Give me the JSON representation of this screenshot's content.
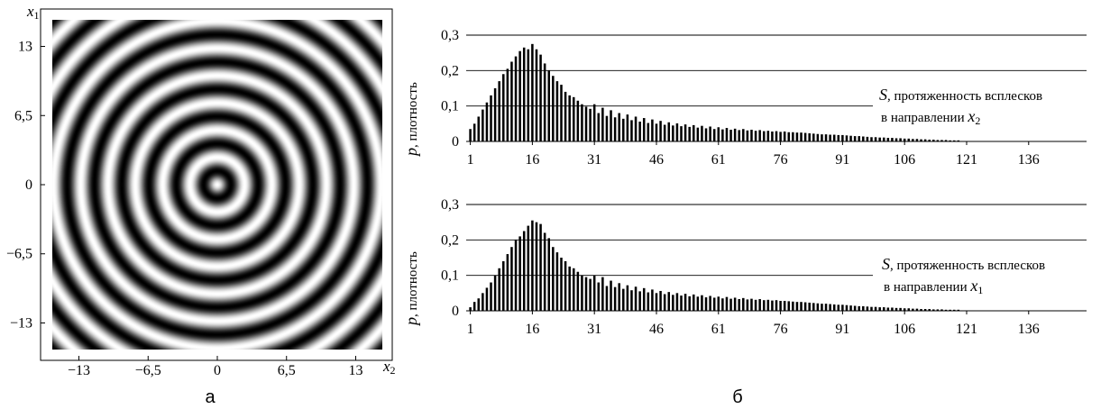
{
  "captions": {
    "a": "а",
    "b": "б"
  },
  "chart_data": [
    {
      "type": "heatmap",
      "xlabel": "x2",
      "ylabel": "x1",
      "xlim": [
        -15.5,
        15.5
      ],
      "ylim": [
        -15.5,
        15.5
      ],
      "x_ticks": [
        "−13",
        "−6,5",
        "0",
        "6,5",
        "13"
      ],
      "x_tick_values": [
        -13,
        -6.5,
        0,
        6.5,
        13
      ],
      "y_ticks": [
        "13",
        "6,5",
        "0",
        "−6,5",
        "−13"
      ],
      "y_tick_values": [
        13,
        6.5,
        0,
        -6.5,
        -13
      ],
      "pattern": "concentric rings, grayscale intensity = cos(k·r)",
      "ring_wavenumber": 2.45
    },
    {
      "type": "bar",
      "ylabel_var": "p",
      "ylabel_text": ", плотность",
      "xlabel_var": "S",
      "xlabel_text": ",  протяженность всплесков",
      "xlabel_line2": "в направлении ",
      "xlabel_axis": "x",
      "xlabel_axis_sub": "2",
      "ylim": [
        0,
        0.3
      ],
      "y_ticks": [
        "0",
        "0,1",
        "0,2",
        "0,3"
      ],
      "y_tick_values": [
        0,
        0.1,
        0.2,
        0.3
      ],
      "xlim": [
        0,
        150
      ],
      "x_ticks": [
        "1",
        "16",
        "31",
        "46",
        "61",
        "76",
        "91",
        "106",
        "121",
        "136"
      ],
      "x_tick_values": [
        1,
        16,
        31,
        46,
        61,
        76,
        91,
        106,
        121,
        136
      ],
      "grid": true,
      "x": [
        1,
        2,
        3,
        4,
        5,
        6,
        7,
        8,
        9,
        10,
        11,
        12,
        13,
        14,
        15,
        16,
        17,
        18,
        19,
        20,
        21,
        22,
        23,
        24,
        25,
        26,
        27,
        28,
        29,
        30,
        31,
        32,
        33,
        34,
        35,
        36,
        37,
        38,
        39,
        40,
        41,
        42,
        43,
        44,
        45,
        46,
        47,
        48,
        49,
        50,
        51,
        52,
        53,
        54,
        55,
        56,
        57,
        58,
        59,
        60,
        61,
        62,
        63,
        64,
        65,
        66,
        67,
        68,
        69,
        70,
        71,
        72,
        73,
        74,
        75,
        76,
        77,
        78,
        79,
        80,
        81,
        82,
        83,
        84,
        85,
        86,
        87,
        88,
        89,
        90,
        91,
        92,
        93,
        94,
        95,
        96,
        97,
        98,
        99,
        100,
        101,
        102,
        103,
        104,
        105,
        106,
        107,
        108,
        109,
        110,
        111,
        112,
        113,
        114,
        115,
        116,
        117,
        118,
        119
      ],
      "values": [
        0.035,
        0.05,
        0.07,
        0.09,
        0.11,
        0.13,
        0.15,
        0.17,
        0.19,
        0.205,
        0.225,
        0.24,
        0.255,
        0.265,
        0.26,
        0.275,
        0.26,
        0.245,
        0.22,
        0.2,
        0.185,
        0.17,
        0.16,
        0.14,
        0.13,
        0.125,
        0.115,
        0.105,
        0.098,
        0.092,
        0.105,
        0.08,
        0.095,
        0.072,
        0.088,
        0.068,
        0.08,
        0.064,
        0.076,
        0.06,
        0.07,
        0.056,
        0.066,
        0.052,
        0.062,
        0.05,
        0.058,
        0.047,
        0.054,
        0.045,
        0.051,
        0.043,
        0.048,
        0.041,
        0.046,
        0.039,
        0.044,
        0.037,
        0.042,
        0.035,
        0.04,
        0.034,
        0.038,
        0.033,
        0.036,
        0.032,
        0.035,
        0.031,
        0.033,
        0.03,
        0.032,
        0.029,
        0.03,
        0.028,
        0.029,
        0.027,
        0.028,
        0.026,
        0.026,
        0.025,
        0.025,
        0.024,
        0.023,
        0.022,
        0.021,
        0.02,
        0.02,
        0.019,
        0.019,
        0.018,
        0.018,
        0.017,
        0.016,
        0.015,
        0.015,
        0.014,
        0.013,
        0.012,
        0.012,
        0.011,
        0.011,
        0.01,
        0.01,
        0.009,
        0.009,
        0.008,
        0.008,
        0.007,
        0.007,
        0.006,
        0.006,
        0.005,
        0.005,
        0.004,
        0.004,
        0.004,
        0.003,
        0.003,
        0.003
      ]
    },
    {
      "type": "bar",
      "ylabel_var": "p",
      "ylabel_text": ", плотность",
      "xlabel_var": "S",
      "xlabel_text": ",  протяженность всплесков",
      "xlabel_line2": "в направлении ",
      "xlabel_axis": "x",
      "xlabel_axis_sub": "1",
      "ylim": [
        0,
        0.3
      ],
      "y_ticks": [
        "0",
        "0,1",
        "0,2",
        "0,3"
      ],
      "y_tick_values": [
        0,
        0.1,
        0.2,
        0.3
      ],
      "xlim": [
        0,
        150
      ],
      "x_ticks": [
        "1",
        "16",
        "31",
        "46",
        "61",
        "76",
        "91",
        "106",
        "121",
        "136"
      ],
      "x_tick_values": [
        1,
        16,
        31,
        46,
        61,
        76,
        91,
        106,
        121,
        136
      ],
      "grid": true,
      "x": [
        1,
        2,
        3,
        4,
        5,
        6,
        7,
        8,
        9,
        10,
        11,
        12,
        13,
        14,
        15,
        16,
        17,
        18,
        19,
        20,
        21,
        22,
        23,
        24,
        25,
        26,
        27,
        28,
        29,
        30,
        31,
        32,
        33,
        34,
        35,
        36,
        37,
        38,
        39,
        40,
        41,
        42,
        43,
        44,
        45,
        46,
        47,
        48,
        49,
        50,
        51,
        52,
        53,
        54,
        55,
        56,
        57,
        58,
        59,
        60,
        61,
        62,
        63,
        64,
        65,
        66,
        67,
        68,
        69,
        70,
        71,
        72,
        73,
        74,
        75,
        76,
        77,
        78,
        79,
        80,
        81,
        82,
        83,
        84,
        85,
        86,
        87,
        88,
        89,
        90,
        91,
        92,
        93,
        94,
        95,
        96,
        97,
        98,
        99,
        100,
        101,
        102,
        103,
        104,
        105,
        106,
        107,
        108,
        109,
        110,
        111,
        112,
        113,
        114,
        115,
        116,
        117,
        118,
        119
      ],
      "values": [
        0.01,
        0.025,
        0.035,
        0.05,
        0.065,
        0.08,
        0.1,
        0.12,
        0.14,
        0.16,
        0.18,
        0.2,
        0.21,
        0.225,
        0.24,
        0.255,
        0.25,
        0.245,
        0.22,
        0.205,
        0.18,
        0.165,
        0.15,
        0.14,
        0.125,
        0.12,
        0.11,
        0.1,
        0.095,
        0.09,
        0.1,
        0.08,
        0.095,
        0.07,
        0.085,
        0.067,
        0.078,
        0.062,
        0.072,
        0.058,
        0.068,
        0.055,
        0.064,
        0.052,
        0.06,
        0.05,
        0.056,
        0.047,
        0.053,
        0.045,
        0.05,
        0.043,
        0.048,
        0.041,
        0.046,
        0.04,
        0.044,
        0.038,
        0.042,
        0.037,
        0.04,
        0.035,
        0.039,
        0.034,
        0.037,
        0.033,
        0.036,
        0.032,
        0.034,
        0.031,
        0.033,
        0.03,
        0.031,
        0.029,
        0.03,
        0.028,
        0.028,
        0.027,
        0.026,
        0.025,
        0.025,
        0.024,
        0.023,
        0.022,
        0.021,
        0.02,
        0.02,
        0.019,
        0.018,
        0.017,
        0.017,
        0.016,
        0.015,
        0.014,
        0.013,
        0.013,
        0.012,
        0.011,
        0.011,
        0.01,
        0.01,
        0.009,
        0.009,
        0.008,
        0.008,
        0.007,
        0.007,
        0.006,
        0.006,
        0.005,
        0.005,
        0.005,
        0.004,
        0.004,
        0.004,
        0.003,
        0.003,
        0.003,
        0.003
      ]
    }
  ]
}
